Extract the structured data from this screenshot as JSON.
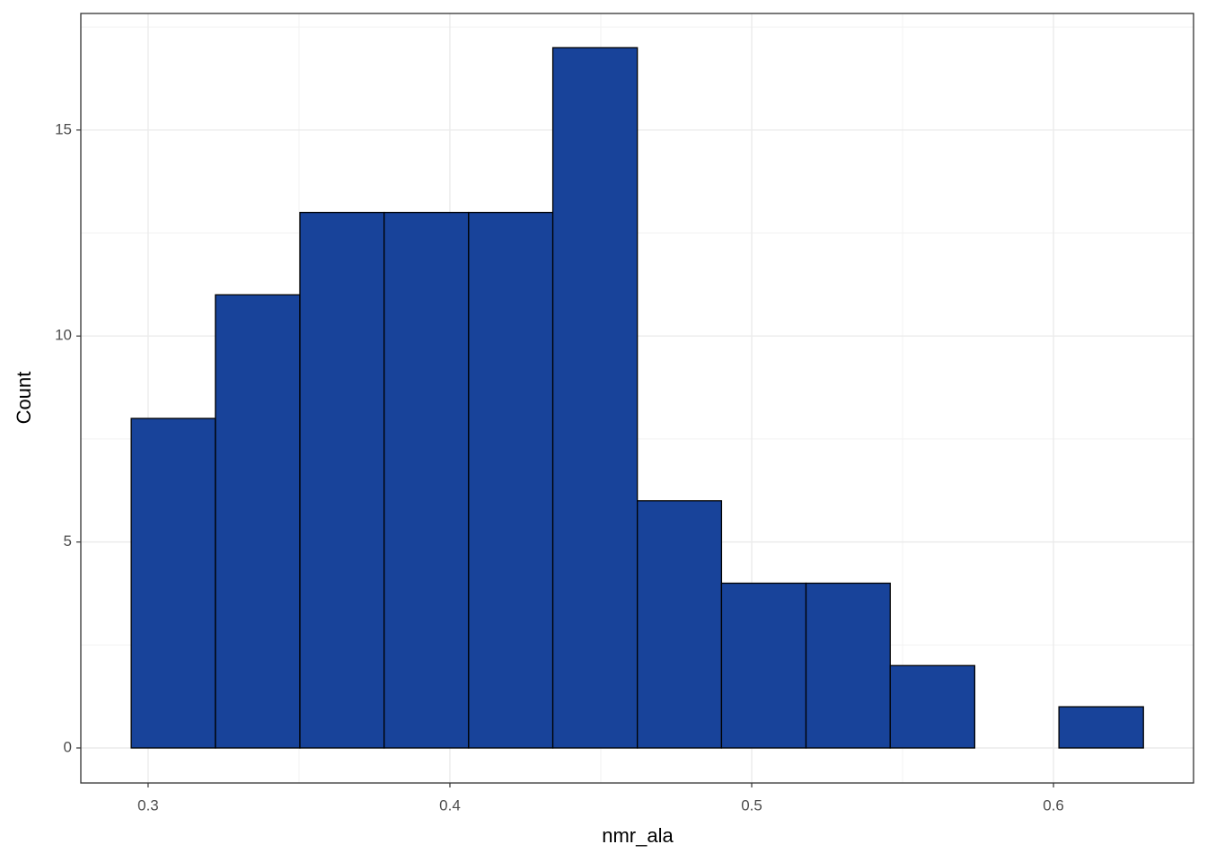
{
  "chart_data": {
    "type": "histogram",
    "x_label": "nmr_ala",
    "y_label": "Count",
    "bins": [
      0.2944,
      0.3223,
      0.3503,
      0.3782,
      0.4062,
      0.4341,
      0.4621,
      0.49,
      0.518,
      0.5459,
      0.5739,
      0.6018,
      0.6298
    ],
    "values": [
      8,
      11,
      13,
      13,
      13,
      17,
      6,
      4,
      4,
      2,
      0,
      1
    ],
    "color": "#18439a",
    "xlim": [
      0.2777,
      0.6464
    ],
    "ylim": [
      -0.85,
      17.83
    ],
    "xticks": [
      0.3,
      0.4,
      0.5,
      0.6
    ],
    "yticks": [
      0,
      5,
      10,
      15
    ],
    "grid": true
  }
}
